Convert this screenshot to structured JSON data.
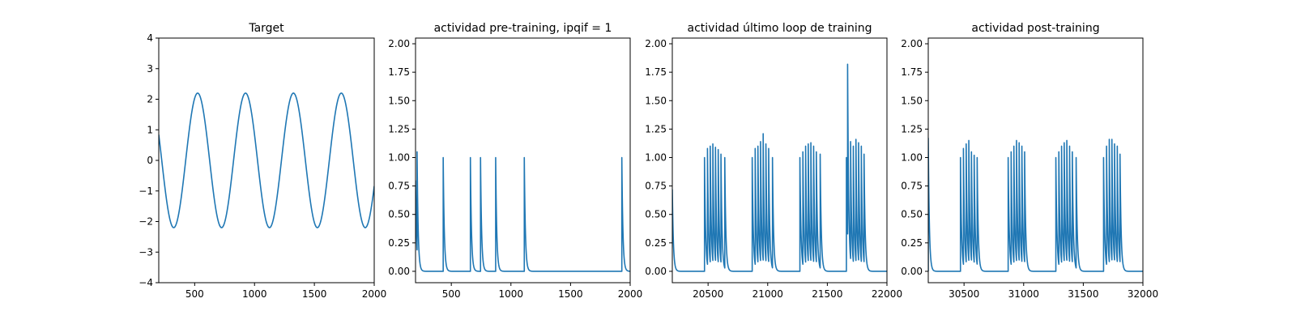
{
  "figure": {
    "background": "#ffffff"
  },
  "chart_data": [
    {
      "type": "line",
      "title": "Target",
      "xlabel": "",
      "ylabel": "",
      "xlim": [
        200,
        2000
      ],
      "ylim": [
        -4,
        4
      ],
      "xticks": [
        500,
        1000,
        1500,
        2000
      ],
      "yticks": [
        -4,
        -3,
        -2,
        -1,
        0,
        1,
        2,
        3,
        4
      ],
      "grid": false,
      "series": [
        {
          "color": "#1f77b4",
          "kind": "sine",
          "amplitude": 2.2,
          "period": 400,
          "peaks_at_x": [
            525,
            925,
            1325,
            1725
          ],
          "x": [
            200,
            250,
            300,
            325,
            350,
            400,
            450,
            500,
            525,
            550,
            600,
            650,
            700,
            725,
            750,
            800,
            850,
            900,
            925,
            950,
            1000,
            1050,
            1100,
            1125,
            1150,
            1200,
            1250,
            1300,
            1325,
            1350,
            1400,
            1450,
            1500,
            1525,
            1550,
            1600,
            1650,
            1700,
            1725,
            1750,
            1800,
            1850,
            1900,
            1925,
            1950,
            2000
          ],
          "y": [
            1.0,
            -0.8,
            -2.0,
            -2.2,
            -2.1,
            -1.5,
            0.0,
            1.55,
            2.2,
            2.05,
            1.1,
            -0.55,
            -1.95,
            -2.2,
            -2.0,
            -1.05,
            0.6,
            1.95,
            2.2,
            2.0,
            1.05,
            -0.6,
            -1.95,
            -2.2,
            -2.0,
            -1.05,
            0.6,
            1.95,
            2.2,
            2.0,
            1.05,
            -0.6,
            -1.95,
            -2.2,
            -2.0,
            -1.05,
            0.6,
            1.95,
            2.2,
            2.0,
            1.05,
            -0.6,
            -1.95,
            -2.2,
            -2.0,
            -1.05
          ]
        }
      ]
    },
    {
      "type": "line",
      "title": "actividad pre-training, ipqif = 1",
      "xlabel": "",
      "ylabel": "",
      "xlim": [
        200,
        2000
      ],
      "ylim": [
        -0.1,
        2.05
      ],
      "xticks": [
        500,
        1000,
        1500,
        2000
      ],
      "yticks": [
        0.0,
        0.25,
        0.5,
        0.75,
        1.0,
        1.25,
        1.5,
        1.75,
        2.0
      ],
      "ytick_labels": [
        "0.00",
        "0.25",
        "0.50",
        "0.75",
        "1.00",
        "1.25",
        "1.50",
        "1.75",
        "2.00"
      ],
      "grid": false,
      "series": [
        {
          "color": "#1f77b4",
          "kind": "spike-train",
          "baseline": 0.0,
          "decay": 9,
          "start_value": 0.8,
          "spikes": [
            {
              "x": 213,
              "height": 1.05
            },
            {
              "x": 432,
              "height": 1.0
            },
            {
              "x": 660,
              "height": 1.0
            },
            {
              "x": 745,
              "height": 1.0
            },
            {
              "x": 872,
              "height": 1.0
            },
            {
              "x": 1112,
              "height": 1.0
            },
            {
              "x": 1930,
              "height": 1.0
            }
          ]
        }
      ]
    },
    {
      "type": "line",
      "title": "actividad último loop de training",
      "xlabel": "",
      "ylabel": "",
      "xlim": [
        20200,
        22000
      ],
      "ylim": [
        -0.1,
        2.05
      ],
      "xticks": [
        20500,
        21000,
        21500,
        22000
      ],
      "yticks": [
        0.0,
        0.25,
        0.5,
        0.75,
        1.0,
        1.25,
        1.5,
        1.75,
        2.0
      ],
      "ytick_labels": [
        "0.00",
        "0.25",
        "0.50",
        "0.75",
        "1.00",
        "1.25",
        "1.50",
        "1.75",
        "2.00"
      ],
      "grid": false,
      "series": [
        {
          "color": "#1f77b4",
          "kind": "spike-train",
          "baseline": 0.0,
          "decay": 9,
          "start_value": 0.72,
          "spikes": [
            {
              "x": 20470,
              "height": 1.0
            },
            {
              "x": 20495,
              "height": 1.08
            },
            {
              "x": 20518,
              "height": 1.1
            },
            {
              "x": 20540,
              "height": 1.12
            },
            {
              "x": 20562,
              "height": 1.09
            },
            {
              "x": 20585,
              "height": 1.07
            },
            {
              "x": 20608,
              "height": 1.03
            },
            {
              "x": 20640,
              "height": 1.0
            },
            {
              "x": 20870,
              "height": 1.0
            },
            {
              "x": 20895,
              "height": 1.08
            },
            {
              "x": 20918,
              "height": 1.1
            },
            {
              "x": 20940,
              "height": 1.14
            },
            {
              "x": 20962,
              "height": 1.21
            },
            {
              "x": 20985,
              "height": 1.12
            },
            {
              "x": 21008,
              "height": 1.08
            },
            {
              "x": 21040,
              "height": 1.0
            },
            {
              "x": 21270,
              "height": 1.0
            },
            {
              "x": 21295,
              "height": 1.05
            },
            {
              "x": 21318,
              "height": 1.1
            },
            {
              "x": 21340,
              "height": 1.12
            },
            {
              "x": 21362,
              "height": 1.13
            },
            {
              "x": 21385,
              "height": 1.1
            },
            {
              "x": 21408,
              "height": 1.05
            },
            {
              "x": 21440,
              "height": 1.03
            },
            {
              "x": 21660,
              "height": 1.0
            },
            {
              "x": 21670,
              "height": 1.82
            },
            {
              "x": 21695,
              "height": 1.14
            },
            {
              "x": 21718,
              "height": 1.1
            },
            {
              "x": 21740,
              "height": 1.16
            },
            {
              "x": 21762,
              "height": 1.13
            },
            {
              "x": 21785,
              "height": 1.1
            },
            {
              "x": 21808,
              "height": 1.03
            }
          ]
        }
      ]
    },
    {
      "type": "line",
      "title": "actividad post-training",
      "xlabel": "",
      "ylabel": "",
      "xlim": [
        30200,
        32000
      ],
      "ylim": [
        -0.1,
        2.05
      ],
      "xticks": [
        30500,
        31000,
        31500,
        32000
      ],
      "yticks": [
        0.0,
        0.25,
        0.5,
        0.75,
        1.0,
        1.25,
        1.5,
        1.75,
        2.0
      ],
      "ytick_labels": [
        "0.00",
        "0.25",
        "0.50",
        "0.75",
        "1.00",
        "1.25",
        "1.50",
        "1.75",
        "2.00"
      ],
      "grid": false,
      "series": [
        {
          "color": "#1f77b4",
          "kind": "spike-train",
          "baseline": 0.0,
          "decay": 9,
          "start_value": 0.0,
          "spikes": [
            {
              "x": 30200,
              "height": 1.17
            },
            {
              "x": 30470,
              "height": 1.0
            },
            {
              "x": 30495,
              "height": 1.08
            },
            {
              "x": 30518,
              "height": 1.12
            },
            {
              "x": 30540,
              "height": 1.15
            },
            {
              "x": 30562,
              "height": 1.05
            },
            {
              "x": 30585,
              "height": 1.02
            },
            {
              "x": 30610,
              "height": 1.0
            },
            {
              "x": 30870,
              "height": 1.0
            },
            {
              "x": 30895,
              "height": 1.05
            },
            {
              "x": 30918,
              "height": 1.1
            },
            {
              "x": 30940,
              "height": 1.15
            },
            {
              "x": 30962,
              "height": 1.13
            },
            {
              "x": 30985,
              "height": 1.1
            },
            {
              "x": 31008,
              "height": 1.05
            },
            {
              "x": 31270,
              "height": 1.0
            },
            {
              "x": 31295,
              "height": 1.05
            },
            {
              "x": 31318,
              "height": 1.1
            },
            {
              "x": 31340,
              "height": 1.13
            },
            {
              "x": 31362,
              "height": 1.15
            },
            {
              "x": 31385,
              "height": 1.1
            },
            {
              "x": 31408,
              "height": 1.05
            },
            {
              "x": 31440,
              "height": 1.0
            },
            {
              "x": 31670,
              "height": 1.0
            },
            {
              "x": 31695,
              "height": 1.1
            },
            {
              "x": 31718,
              "height": 1.16
            },
            {
              "x": 31740,
              "height": 1.16
            },
            {
              "x": 31762,
              "height": 1.12
            },
            {
              "x": 31785,
              "height": 1.1
            },
            {
              "x": 31808,
              "height": 1.03
            }
          ]
        }
      ]
    }
  ]
}
